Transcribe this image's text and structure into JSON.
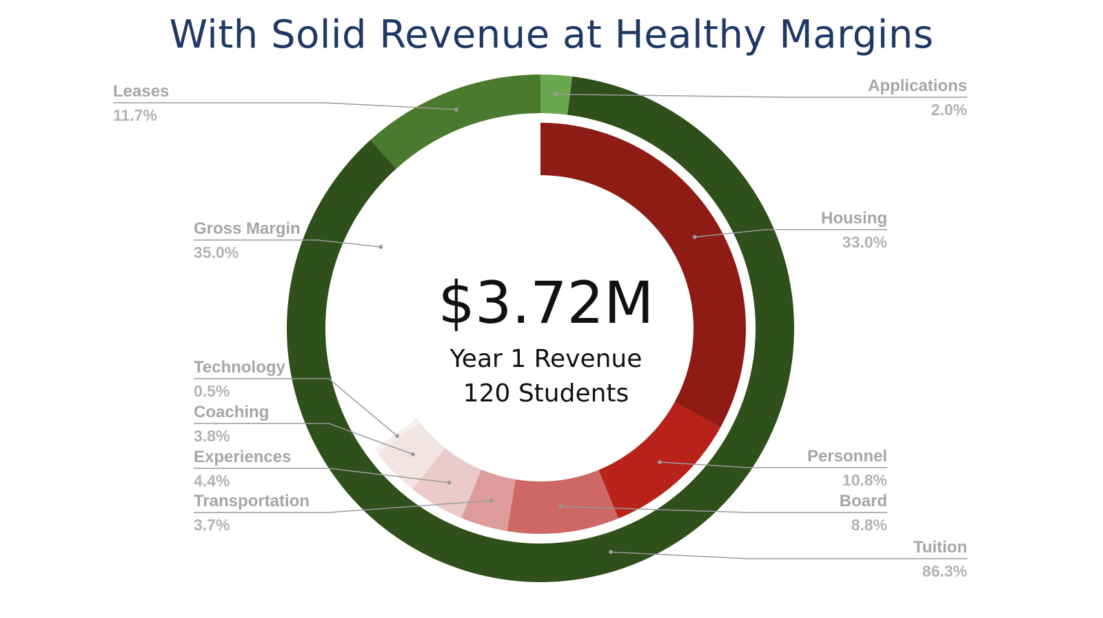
{
  "title": "With Solid Revenue at Healthy Margins",
  "center": {
    "value": "$3.72M",
    "line1": "Year 1 Revenue",
    "line2": "120 Students"
  },
  "chart_data": {
    "type": "pie",
    "donut": true,
    "rings": [
      {
        "ring": "outer",
        "slices": [
          {
            "label": "Applications",
            "value": 2.0,
            "display": "2.0%",
            "color": "#6aa84f"
          },
          {
            "label": "Tuition",
            "value": 86.3,
            "display": "86.3%",
            "color": "#2f4f1b"
          },
          {
            "label": "Leases",
            "value": 11.7,
            "display": "11.7%",
            "color": "#4a7a2e"
          }
        ]
      },
      {
        "ring": "inner",
        "slices": [
          {
            "label": "Housing",
            "value": 33.0,
            "display": "33.0%",
            "color": "#8e1b14"
          },
          {
            "label": "Personnel",
            "value": 10.8,
            "display": "10.8%",
            "color": "#b82219"
          },
          {
            "label": "Board",
            "value": 8.8,
            "display": "8.8%",
            "color": "#cd6864"
          },
          {
            "label": "Transportation",
            "value": 3.7,
            "display": "3.7%",
            "color": "#de9b9b"
          },
          {
            "label": "Experiences",
            "value": 4.4,
            "display": "4.4%",
            "color": "#ebcaca"
          },
          {
            "label": "Coaching",
            "value": 3.8,
            "display": "3.8%",
            "color": "#f3e4e4"
          },
          {
            "label": "Technology",
            "value": 0.5,
            "display": "0.5%",
            "color": "#f7eeee"
          },
          {
            "label": "Gross Margin",
            "value": 35.0,
            "display": "35.0%",
            "color": "#ffffff"
          }
        ]
      }
    ]
  }
}
